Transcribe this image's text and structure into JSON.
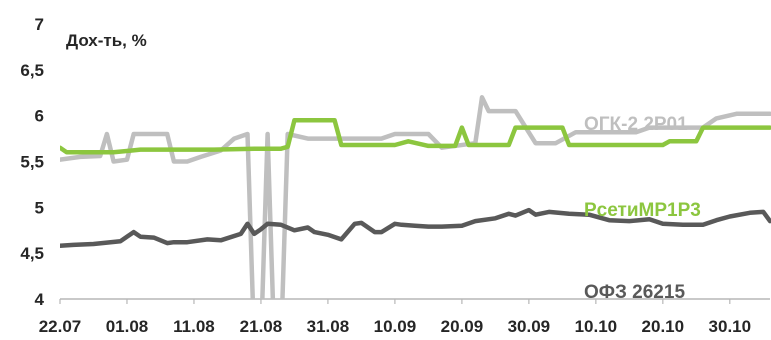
{
  "chart_data": {
    "type": "line",
    "title": "",
    "ylabel": "Дох-ть, %",
    "xlabel": "",
    "ylim": [
      4,
      7
    ],
    "y_ticks": [
      4,
      4.5,
      5,
      5.5,
      6,
      6.5,
      7
    ],
    "y_tick_labels": [
      "4",
      "4,5",
      "5",
      "5,5",
      "6",
      "6,5",
      "7"
    ],
    "x_range": [
      "2015-07-22",
      "2015-11-05"
    ],
    "x_tick_dates": [
      "2015-07-22",
      "2015-08-01",
      "2015-08-11",
      "2015-08-21",
      "2015-08-31",
      "2015-09-10",
      "2015-09-20",
      "2015-09-30",
      "2015-10-10",
      "2015-10-20",
      "2015-10-30"
    ],
    "x_tick_labels": [
      "22.07",
      "01.08",
      "11.08",
      "21.08",
      "31.08",
      "10.09",
      "20.09",
      "30.09",
      "10.10",
      "20.10",
      "30.10"
    ],
    "grid": false,
    "series": [
      {
        "name": "ОФЗ 26215",
        "color": "#595959",
        "x": [
          "2015-07-22",
          "2015-07-24",
          "2015-07-27",
          "2015-07-31",
          "2015-08-02",
          "2015-08-03",
          "2015-08-05",
          "2015-08-07",
          "2015-08-08",
          "2015-08-10",
          "2015-08-13",
          "2015-08-15",
          "2015-08-18",
          "2015-08-19",
          "2015-08-20",
          "2015-08-21",
          "2015-08-22",
          "2015-08-24",
          "2015-08-26",
          "2015-08-28",
          "2015-08-29",
          "2015-08-31",
          "2015-09-02",
          "2015-09-04",
          "2015-09-05",
          "2015-09-07",
          "2015-09-08",
          "2015-09-10",
          "2015-09-11",
          "2015-09-13",
          "2015-09-15",
          "2015-09-17",
          "2015-09-20",
          "2015-09-22",
          "2015-09-25",
          "2015-09-27",
          "2015-09-28",
          "2015-09-30",
          "2015-10-01",
          "2015-10-03",
          "2015-10-06",
          "2015-10-09",
          "2015-10-12",
          "2015-10-15",
          "2015-10-18",
          "2015-10-20",
          "2015-10-23",
          "2015-10-26",
          "2015-10-28",
          "2015-10-30",
          "2015-11-02",
          "2015-11-04",
          "2015-11-05"
        ],
        "y": [
          4.58,
          4.59,
          4.6,
          4.63,
          4.73,
          4.68,
          4.67,
          4.61,
          4.62,
          4.62,
          4.65,
          4.64,
          4.71,
          4.82,
          4.71,
          4.76,
          4.82,
          4.81,
          4.75,
          4.78,
          4.73,
          4.7,
          4.65,
          4.82,
          4.83,
          4.73,
          4.73,
          4.82,
          4.81,
          4.8,
          4.79,
          4.79,
          4.8,
          4.85,
          4.88,
          4.93,
          4.91,
          4.97,
          4.92,
          4.95,
          4.93,
          4.92,
          4.86,
          4.85,
          4.87,
          4.82,
          4.81,
          4.81,
          4.86,
          4.9,
          4.94,
          4.95,
          4.85
        ]
      },
      {
        "name": "РсетиМР1Р3",
        "color": "#8cc63f",
        "x": [
          "2015-07-22",
          "2015-07-23",
          "2015-07-30",
          "2015-08-03",
          "2015-08-04",
          "2015-08-12",
          "2015-08-14",
          "2015-08-20",
          "2015-08-24",
          "2015-08-25",
          "2015-08-26",
          "2015-08-28",
          "2015-09-01",
          "2015-09-02",
          "2015-09-03",
          "2015-09-10",
          "2015-09-12",
          "2015-09-15",
          "2015-09-19",
          "2015-09-20",
          "2015-09-21",
          "2015-09-27",
          "2015-09-28",
          "2015-10-05",
          "2015-10-06",
          "2015-10-20",
          "2015-10-21",
          "2015-10-25",
          "2015-10-26",
          "2015-11-05"
        ],
        "y": [
          5.65,
          5.6,
          5.6,
          5.63,
          5.63,
          5.63,
          5.63,
          5.64,
          5.64,
          5.66,
          5.95,
          5.95,
          5.95,
          5.68,
          5.68,
          5.68,
          5.72,
          5.67,
          5.67,
          5.87,
          5.68,
          5.68,
          5.87,
          5.87,
          5.68,
          5.68,
          5.72,
          5.72,
          5.87,
          5.87
        ]
      },
      {
        "name": "ОГК-2 2Р01",
        "color": "#bfbfbf",
        "x": [
          "2015-07-22",
          "2015-07-25",
          "2015-07-28",
          "2015-07-29",
          "2015-07-30",
          "2015-08-01",
          "2015-08-02",
          "2015-08-07",
          "2015-08-08",
          "2015-08-10",
          "2015-08-12",
          "2015-08-15",
          "2015-08-17",
          "2015-08-19",
          "2015-08-20",
          "2015-08-21",
          "2015-08-22",
          "2015-08-23",
          "2015-08-24",
          "2015-08-25",
          "2015-08-28",
          "2015-08-30",
          "2015-09-01",
          "2015-09-03",
          "2015-09-08",
          "2015-09-10",
          "2015-09-15",
          "2015-09-17",
          "2015-09-22",
          "2015-09-23",
          "2015-09-24",
          "2015-09-25",
          "2015-09-28",
          "2015-10-01",
          "2015-10-04",
          "2015-10-07",
          "2015-10-16",
          "2015-10-18",
          "2015-10-23",
          "2015-10-26",
          "2015-10-28",
          "2015-10-31",
          "2015-11-05"
        ],
        "y": [
          5.52,
          5.55,
          5.56,
          5.8,
          5.5,
          5.52,
          5.8,
          5.8,
          5.5,
          5.5,
          5.55,
          5.62,
          5.75,
          5.8,
          3.5,
          3.5,
          5.8,
          3.5,
          3.5,
          5.8,
          5.75,
          5.75,
          5.75,
          5.75,
          5.75,
          5.8,
          5.8,
          5.65,
          5.7,
          6.2,
          6.05,
          6.05,
          6.05,
          5.7,
          5.7,
          5.82,
          5.82,
          5.87,
          5.87,
          5.87,
          5.97,
          6.02,
          6.02
        ]
      }
    ]
  }
}
